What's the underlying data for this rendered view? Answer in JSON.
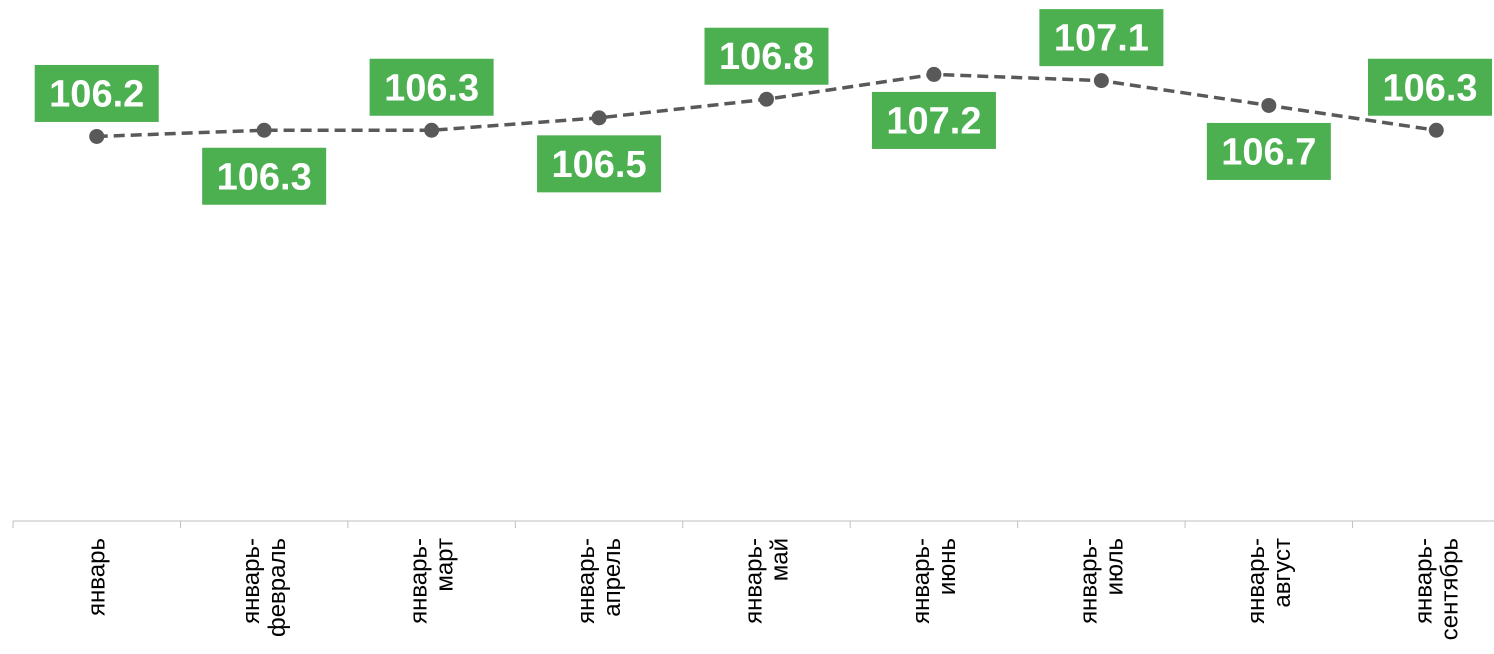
{
  "chart_data": {
    "type": "line",
    "title": "",
    "xlabel": "",
    "ylabel": "",
    "categories": [
      [
        "январь"
      ],
      [
        "январь-",
        "февраль"
      ],
      [
        "январь-",
        "март"
      ],
      [
        "январь-",
        "апрель"
      ],
      [
        "январь-",
        "май"
      ],
      [
        "январь-",
        "июнь"
      ],
      [
        "январь-",
        "июль"
      ],
      [
        "январь-",
        "август"
      ],
      [
        "январь-",
        "сентябрь"
      ]
    ],
    "series": [
      {
        "values": [
          106.2,
          106.3,
          106.3,
          106.5,
          106.8,
          107.2,
          107.1,
          106.7,
          106.3
        ],
        "labels": [
          "106.2",
          "106.3",
          "106.3",
          "106.5",
          "106.8",
          "107.2",
          "107.1",
          "106.7",
          "106.3"
        ],
        "label_positions": [
          "above",
          "below",
          "above",
          "below",
          "above",
          "below",
          "above",
          "below",
          "above"
        ]
      }
    ],
    "ylim": [
      100,
      108.4
    ],
    "grid": false,
    "legend": "none",
    "colors": {
      "line": "#595959",
      "marker": "#595959",
      "label_bg": "#4caf50",
      "label_text": "#ffffff",
      "axis": "#bfbfbf"
    }
  }
}
